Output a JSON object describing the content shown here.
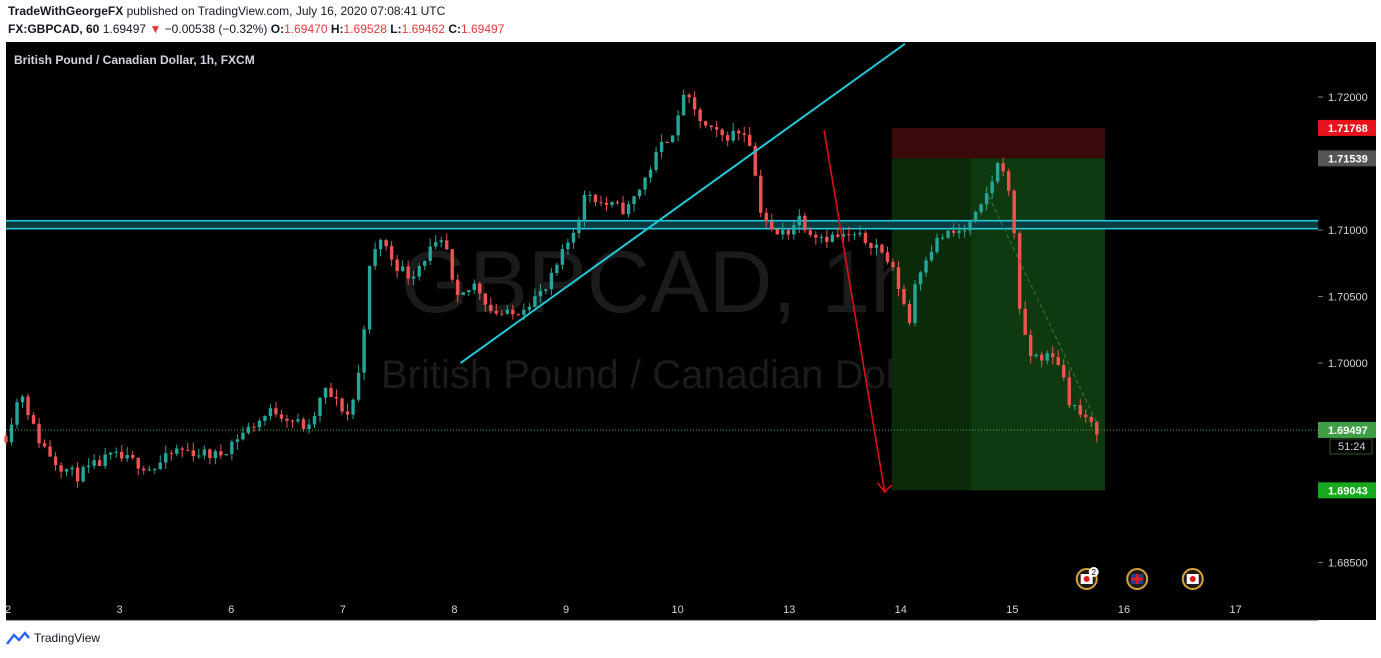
{
  "header": {
    "author": "TradeWithGeorgeFX",
    "published_text": "published on TradingView.com, July 16, 2020 07:08:41 UTC",
    "symbol": "FX:GBPCAD, 60",
    "last": "1.69497",
    "change_arrow": "▼",
    "change": "−0.00538 (−0.32%)",
    "o_label": "O:",
    "o_value": "1.69470",
    "h_label": "H:",
    "h_value": "1.69528",
    "l_label": "L:",
    "l_value": "1.69462",
    "c_label": "C:",
    "c_value": "1.69497"
  },
  "chart_title": "British Pound / Canadian Dollar, 1h, FXCM",
  "watermark": {
    "symbol": "GBPCAD, 1h",
    "name": "British Pound / Canadian Dollar"
  },
  "footer": {
    "brand": "TradingView"
  },
  "colors": {
    "background": "#000000",
    "up": "#26a69a",
    "down": "#ef5350",
    "trendline": "#22c9d9",
    "arrow": "#e01010",
    "profit_zone": "#0f3a0f",
    "loss_zone": "#3a0a0a",
    "current_price": "#4caf50"
  },
  "chart_data": {
    "type": "candlestick",
    "x_ticks": [
      "2",
      "3",
      "6",
      "7",
      "8",
      "9",
      "10",
      "13",
      "14",
      "15",
      "16",
      "17"
    ],
    "y_ticks": [
      "1.72000",
      "1.71000",
      "1.70500",
      "1.70000",
      "1.68500"
    ],
    "ylim": [
      1.6835,
      1.7235
    ],
    "price_labels": [
      {
        "role": "stop",
        "value": "1.71768",
        "price": 1.71768
      },
      {
        "role": "entry",
        "value": "1.71539",
        "price": 1.71539
      },
      {
        "role": "current",
        "value": "1.69497",
        "price": 1.69497
      },
      {
        "role": "target",
        "value": "1.69043",
        "price": 1.69043
      }
    ],
    "countdown": "51:24",
    "horizontal_level": 1.7104,
    "anchors": [
      [
        0,
        1.6945
      ],
      [
        1.5,
        1.698
      ],
      [
        3,
        1.6945
      ],
      [
        5,
        1.6925
      ],
      [
        7,
        1.6915
      ],
      [
        10.5,
        1.693
      ],
      [
        13,
        1.6925
      ],
      [
        14.5,
        1.692
      ],
      [
        17,
        1.6935
      ],
      [
        21,
        1.693
      ],
      [
        23,
        1.6945
      ],
      [
        26.5,
        1.6965
      ],
      [
        30,
        1.695
      ],
      [
        31.5,
        1.698
      ],
      [
        34,
        1.696
      ],
      [
        35,
        1.6995
      ],
      [
        36,
        1.707
      ],
      [
        37,
        1.7095
      ],
      [
        38.5,
        1.7075
      ],
      [
        40,
        1.7065
      ],
      [
        42,
        1.7085
      ],
      [
        43.5,
        1.709
      ],
      [
        44.5,
        1.7045
      ],
      [
        46.5,
        1.706
      ],
      [
        48,
        1.704
      ],
      [
        50,
        1.7035
      ],
      [
        51.5,
        1.7045
      ],
      [
        53.5,
        1.7055
      ],
      [
        55,
        1.708
      ],
      [
        56.5,
        1.7105
      ],
      [
        57.5,
        1.713
      ],
      [
        59,
        1.712
      ],
      [
        61.5,
        1.7115
      ],
      [
        63,
        1.7135
      ],
      [
        65,
        1.7165
      ],
      [
        66.5,
        1.718
      ],
      [
        67,
        1.7205
      ],
      [
        68,
        1.719
      ],
      [
        69.5,
        1.7175
      ],
      [
        71,
        1.717
      ],
      [
        73,
        1.7175
      ],
      [
        73.8,
        1.7165
      ],
      [
        74.5,
        1.712
      ],
      [
        76,
        1.7095
      ],
      [
        77.5,
        1.71
      ],
      [
        78.5,
        1.711
      ],
      [
        79.5,
        1.71
      ],
      [
        81,
        1.7095
      ],
      [
        84,
        1.7095
      ],
      [
        86,
        1.709
      ],
      [
        87.5,
        1.7075
      ],
      [
        88.5,
        1.7055
      ],
      [
        89.5,
        1.703
      ],
      [
        90,
        1.706
      ],
      [
        91,
        1.708
      ],
      [
        92.5,
        1.7095
      ],
      [
        95,
        1.71
      ],
      [
        96.5,
        1.7115
      ],
      [
        97.5,
        1.7135
      ],
      [
        98.5,
        1.7155
      ],
      [
        99,
        1.714
      ],
      [
        100,
        1.709
      ],
      [
        100.5,
        1.7025
      ],
      [
        101.5,
        1.7005
      ],
      [
        103,
        1.7005
      ],
      [
        104.5,
        1.7
      ],
      [
        105,
        1.6975
      ],
      [
        107,
        1.6955
      ],
      [
        108,
        1.695
      ]
    ],
    "trendline": [
      [
        45,
        1.7
      ],
      [
        89,
        1.724
      ]
    ],
    "arrow": {
      "from": [
        81,
        1.7175
      ],
      "to": [
        87,
        1.6903
      ]
    },
    "position": {
      "x_start": 87.7,
      "x_end": 108.8,
      "entry_x": 95.5
    },
    "event_flags": [
      {
        "x": 107,
        "icon": "canada-flag-icon",
        "badge": "2"
      },
      {
        "x": 112,
        "icon": "uk-flag-icon",
        "badge": ""
      },
      {
        "x": 117.5,
        "icon": "canada-flag-icon",
        "badge": ""
      }
    ]
  }
}
